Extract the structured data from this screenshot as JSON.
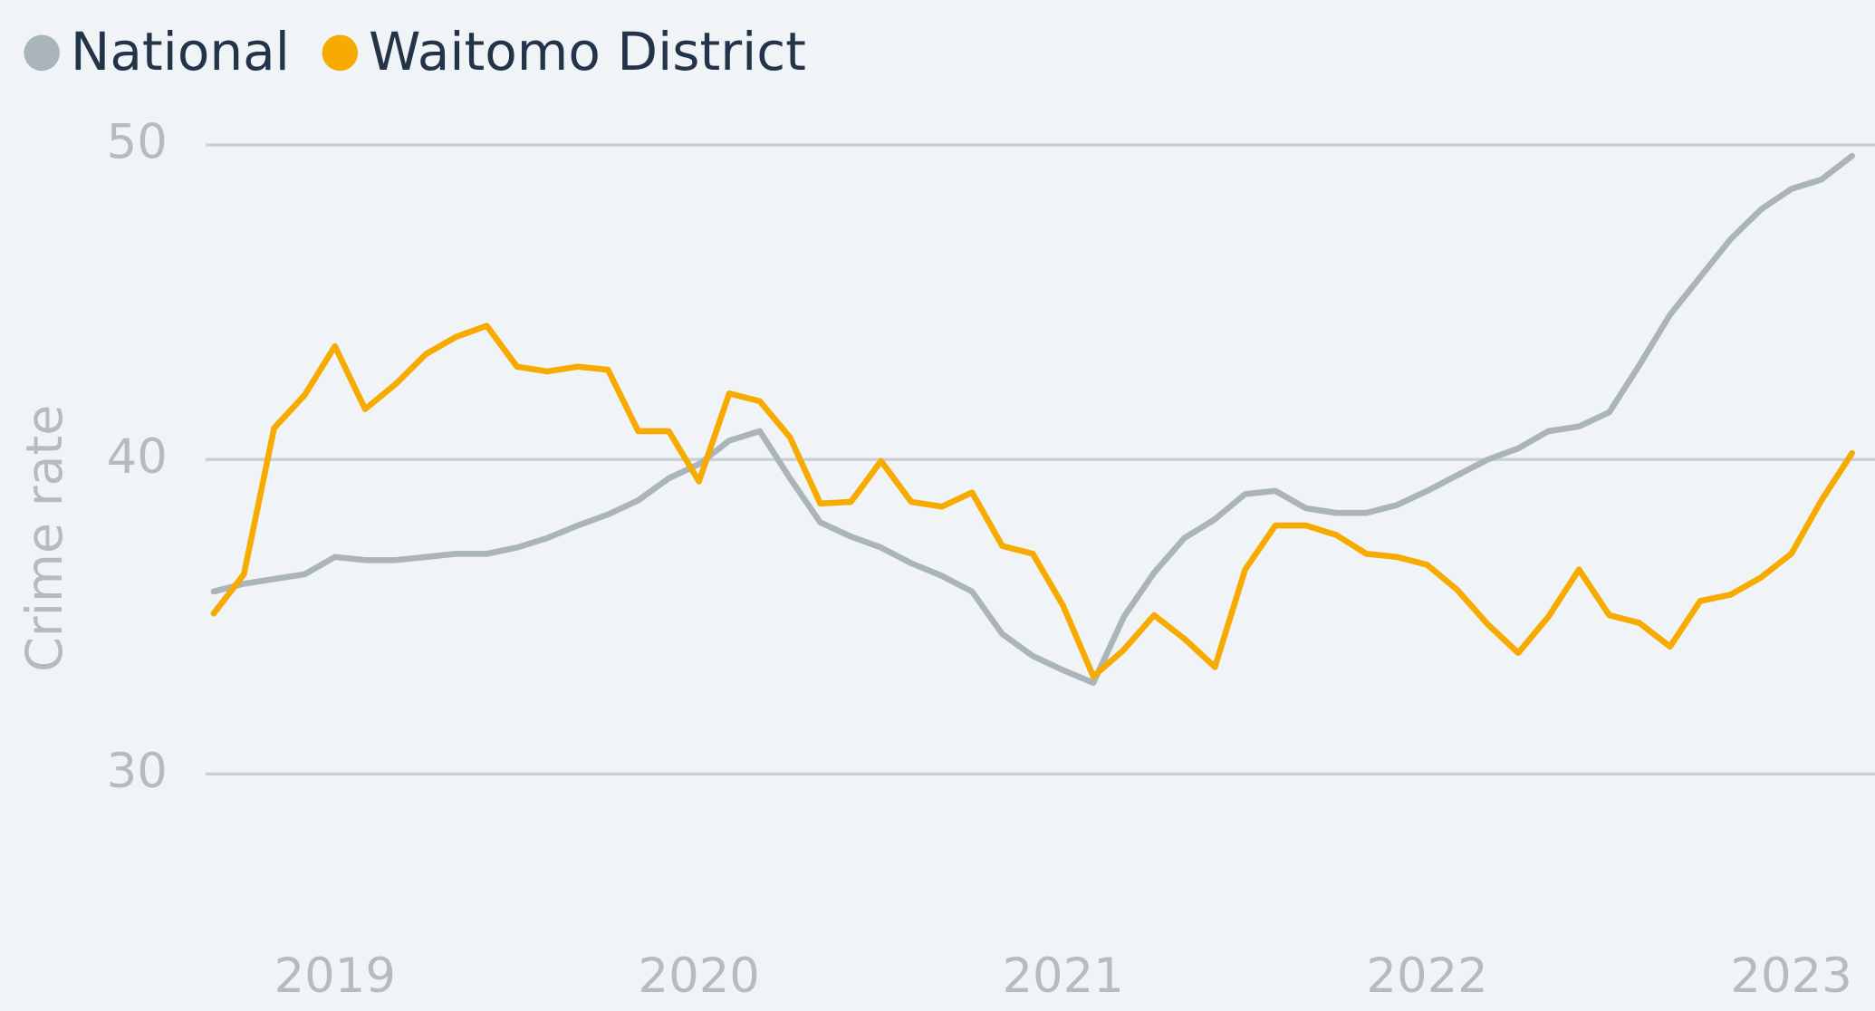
{
  "chart_data": {
    "type": "line",
    "y_label": "Crime rate",
    "x": [
      2018.667,
      2018.75,
      2018.833,
      2018.917,
      2019,
      2019.083,
      2019.167,
      2019.25,
      2019.333,
      2019.417,
      2019.5,
      2019.583,
      2019.667,
      2019.75,
      2019.833,
      2019.917,
      2020,
      2020.083,
      2020.167,
      2020.25,
      2020.333,
      2020.417,
      2020.5,
      2020.583,
      2020.667,
      2020.75,
      2020.833,
      2020.917,
      2021,
      2021.083,
      2021.167,
      2021.25,
      2021.333,
      2021.417,
      2021.5,
      2021.583,
      2021.667,
      2021.75,
      2021.833,
      2021.917,
      2022,
      2022.083,
      2022.167,
      2022.25,
      2022.333,
      2022.417,
      2022.5,
      2022.583,
      2022.667,
      2022.75,
      2022.833,
      2022.917,
      2023,
      2023.083,
      2023.167
    ],
    "series": [
      {
        "name": "National",
        "color": "#a9b4bb",
        "values": [
          35.8,
          36.05,
          36.2,
          36.35,
          36.9,
          36.8,
          36.8,
          36.9,
          37.0,
          37.0,
          37.2,
          37.5,
          37.9,
          38.25,
          38.7,
          39.4,
          39.85,
          40.6,
          40.9,
          39.4,
          38.0,
          37.55,
          37.2,
          36.7,
          36.3,
          35.8,
          34.45,
          33.75,
          33.3,
          32.9,
          35.0,
          36.4,
          37.5,
          38.1,
          38.9,
          39.0,
          38.45,
          38.3,
          38.3,
          38.55,
          39.0,
          39.5,
          40.0,
          40.35,
          40.9,
          41.05,
          41.5,
          43.0,
          44.6,
          45.8,
          47.0,
          47.95,
          48.6,
          48.9,
          49.65
        ]
      },
      {
        "name": "Waitomo District",
        "color": "#f7aa00",
        "values": [
          35.1,
          36.35,
          41.0,
          42.05,
          43.6,
          41.6,
          42.4,
          43.35,
          43.9,
          44.25,
          42.95,
          42.8,
          42.95,
          42.85,
          40.9,
          40.9,
          39.3,
          42.1,
          41.85,
          40.7,
          38.6,
          38.65,
          39.95,
          38.65,
          38.5,
          38.95,
          37.25,
          37.0,
          35.35,
          33.1,
          33.95,
          35.05,
          34.3,
          33.4,
          36.5,
          37.9,
          37.9,
          37.6,
          37.0,
          36.9,
          36.65,
          35.85,
          34.75,
          33.85,
          35.0,
          36.5,
          35.05,
          34.8,
          34.05,
          35.5,
          35.7,
          36.25,
          37.0,
          38.7,
          40.2
        ]
      }
    ],
    "xlim": [
      2018.645,
      2023.23
    ],
    "xticks": [
      2019,
      2020,
      2021,
      2022,
      2023
    ],
    "ylim": [
      30,
      50
    ],
    "yticks": [
      30,
      40,
      50
    ],
    "grid": true
  }
}
